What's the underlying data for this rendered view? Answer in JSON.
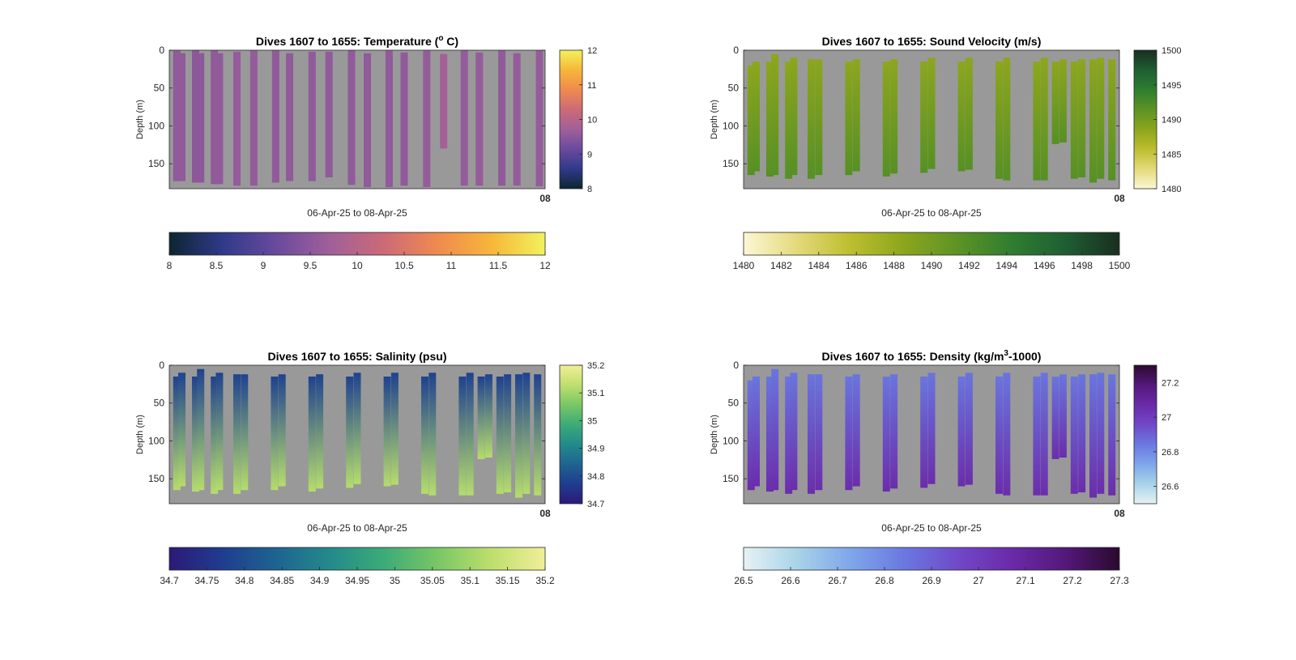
{
  "figure": {
    "background": "#ffffff",
    "plot_background": "#999999"
  },
  "chart_data": [
    {
      "type": "heatmap",
      "id": "temperature",
      "title": "Dives 1607 to 1655: Temperature (°C)",
      "title_main": "Dives 1607 to 1655: Temperature (",
      "title_sup": "o",
      "title_end": " C)",
      "ylabel": "Depth (m)",
      "xlabel": "06-Apr-25 to 08-Apr-25",
      "x_tick_label": "08",
      "ylim": [
        0,
        183
      ],
      "y_reversed": true,
      "y_ticks": [
        0,
        50,
        100,
        150
      ],
      "clim": [
        8,
        12
      ],
      "side_ticks": [
        8,
        9,
        10,
        11,
        12
      ],
      "bottom_ticks": [
        "8",
        "8.5",
        "9",
        "9.5",
        "10",
        "10.5",
        "11",
        "11.5",
        "12"
      ],
      "colormap": [
        "#0d2530",
        "#2f3a8a",
        "#6a4a9d",
        "#a0609a",
        "#cc6a77",
        "#ef8a4f",
        "#f7b63a",
        "#f2f25d"
      ],
      "value_rule": "base_plus_depth",
      "base_value": 9.55,
      "value_spread": 0.08,
      "casts": [
        {
          "x": 0.02,
          "start": 0,
          "end": 173,
          "value": 9.55
        },
        {
          "x": 0.0335,
          "start": 4,
          "end": 173,
          "value": 9.55
        },
        {
          "x": 0.07,
          "start": 0,
          "end": 175,
          "value": 9.5
        },
        {
          "x": 0.0835,
          "start": 4,
          "end": 175,
          "value": 9.5
        },
        {
          "x": 0.12,
          "start": 0,
          "end": 177,
          "value": 9.55
        },
        {
          "x": 0.1335,
          "start": 4,
          "end": 177,
          "value": 9.55
        },
        {
          "x": 0.18,
          "start": 2,
          "end": 179,
          "value": 9.6
        },
        {
          "x": 0.225,
          "start": 0,
          "end": 179,
          "value": 9.6
        },
        {
          "x": 0.283,
          "start": 0,
          "end": 175,
          "value": 9.55
        },
        {
          "x": 0.32,
          "start": 4,
          "end": 173,
          "value": 9.55
        },
        {
          "x": 0.38,
          "start": 2,
          "end": 173,
          "value": 9.55
        },
        {
          "x": 0.425,
          "start": 2,
          "end": 168,
          "value": 9.55
        },
        {
          "x": 0.485,
          "start": 0,
          "end": 178,
          "value": 9.55
        },
        {
          "x": 0.527,
          "start": 4,
          "end": 181,
          "value": 9.55
        },
        {
          "x": 0.585,
          "start": 0,
          "end": 181,
          "value": 9.55
        },
        {
          "x": 0.625,
          "start": 3,
          "end": 179,
          "value": 9.55
        },
        {
          "x": 0.685,
          "start": 0,
          "end": 181,
          "value": 9.6
        },
        {
          "x": 0.73,
          "start": 5,
          "end": 130,
          "value": 9.75
        },
        {
          "x": 0.785,
          "start": 0,
          "end": 179,
          "value": 9.6
        },
        {
          "x": 0.825,
          "start": 3,
          "end": 179,
          "value": 9.6
        },
        {
          "x": 0.885,
          "start": 0,
          "end": 179,
          "value": 9.55
        },
        {
          "x": 0.925,
          "start": 4,
          "end": 179,
          "value": 9.6
        },
        {
          "x": 0.985,
          "start": 0,
          "end": 180,
          "value": 9.6
        }
      ]
    },
    {
      "type": "heatmap",
      "id": "sound_velocity",
      "title": "Dives 1607 to 1655: Sound Velocity (m/s)",
      "title_main": "Dives 1607 to 1655: Sound Velocity (m/s)",
      "title_sup": "",
      "title_end": "",
      "ylabel": "Depth (m)",
      "xlabel": "06-Apr-25 to 08-Apr-25",
      "x_tick_label": "08",
      "ylim": [
        0,
        183
      ],
      "y_reversed": true,
      "y_ticks": [
        0,
        50,
        100,
        150
      ],
      "clim": [
        1480,
        1500
      ],
      "side_ticks": [
        1480,
        1485,
        1490,
        1495,
        1500
      ],
      "bottom_ticks": [
        "1480",
        "1482",
        "1484",
        "1486",
        "1488",
        "1490",
        "1492",
        "1494",
        "1496",
        "1498",
        "1500"
      ],
      "colormap": [
        "#fcf7d5",
        "#e4d97a",
        "#bcbe2e",
        "#8ca51d",
        "#5c9324",
        "#2f7d2f",
        "#1e5e33",
        "#1a2e1f"
      ],
      "value_rule": "gradient",
      "top_value": 1488.5,
      "bottom_value": 1491.8,
      "casts": [
        {
          "x": 0.02,
          "start": 20,
          "end": 165
        },
        {
          "x": 0.0335,
          "start": 15,
          "end": 160
        },
        {
          "x": 0.07,
          "start": 15,
          "end": 167
        },
        {
          "x": 0.0835,
          "start": 5,
          "end": 165
        },
        {
          "x": 0.12,
          "start": 15,
          "end": 170
        },
        {
          "x": 0.1335,
          "start": 10,
          "end": 165
        },
        {
          "x": 0.18,
          "start": 12,
          "end": 170
        },
        {
          "x": 0.2,
          "start": 12,
          "end": 165
        },
        {
          "x": 0.28,
          "start": 15,
          "end": 165
        },
        {
          "x": 0.3,
          "start": 12,
          "end": 160
        },
        {
          "x": 0.38,
          "start": 15,
          "end": 167
        },
        {
          "x": 0.4,
          "start": 12,
          "end": 163
        },
        {
          "x": 0.48,
          "start": 15,
          "end": 162
        },
        {
          "x": 0.5,
          "start": 10,
          "end": 157
        },
        {
          "x": 0.58,
          "start": 15,
          "end": 160
        },
        {
          "x": 0.6,
          "start": 10,
          "end": 158
        },
        {
          "x": 0.68,
          "start": 15,
          "end": 170
        },
        {
          "x": 0.7,
          "start": 10,
          "end": 172
        },
        {
          "x": 0.78,
          "start": 15,
          "end": 172
        },
        {
          "x": 0.8,
          "start": 10,
          "end": 172
        },
        {
          "x": 0.83,
          "start": 15,
          "end": 124
        },
        {
          "x": 0.85,
          "start": 12,
          "end": 122
        },
        {
          "x": 0.88,
          "start": 15,
          "end": 170
        },
        {
          "x": 0.9,
          "start": 12,
          "end": 168
        },
        {
          "x": 0.93,
          "start": 12,
          "end": 175
        },
        {
          "x": 0.95,
          "start": 10,
          "end": 170
        },
        {
          "x": 0.98,
          "start": 12,
          "end": 172
        }
      ]
    },
    {
      "type": "heatmap",
      "id": "salinity",
      "title": "Dives 1607 to 1655: Salinity (psu)",
      "title_main": "Dives 1607 to 1655: Salinity (psu)",
      "title_sup": "",
      "title_end": "",
      "ylabel": "Depth (m)",
      "xlabel": "06-Apr-25 to 08-Apr-25",
      "x_tick_label": "08",
      "ylim": [
        0,
        183
      ],
      "y_reversed": true,
      "y_ticks": [
        0,
        50,
        100,
        150
      ],
      "clim": [
        34.7,
        35.2
      ],
      "side_ticks": [
        34.7,
        34.8,
        34.9,
        35,
        35.1,
        35.2
      ],
      "bottom_ticks": [
        "34.7",
        "34.75",
        "34.8",
        "34.85",
        "34.9",
        "34.95",
        "35",
        "35.05",
        "35.1",
        "35.15",
        "35.2"
      ],
      "colormap": [
        "#2b1a78",
        "#1f3d8f",
        "#1e6491",
        "#238a8a",
        "#3cab78",
        "#79c765",
        "#bddf6e",
        "#f2ee98"
      ],
      "value_rule": "gradient",
      "top_value": 34.78,
      "bottom_value": 35.12,
      "casts": [
        {
          "x": 0.02,
          "start": 15,
          "end": 165
        },
        {
          "x": 0.0335,
          "start": 10,
          "end": 160
        },
        {
          "x": 0.07,
          "start": 15,
          "end": 167
        },
        {
          "x": 0.0835,
          "start": 5,
          "end": 165
        },
        {
          "x": 0.12,
          "start": 15,
          "end": 170
        },
        {
          "x": 0.1335,
          "start": 10,
          "end": 165
        },
        {
          "x": 0.18,
          "start": 12,
          "end": 170
        },
        {
          "x": 0.2,
          "start": 12,
          "end": 165
        },
        {
          "x": 0.28,
          "start": 15,
          "end": 165
        },
        {
          "x": 0.3,
          "start": 12,
          "end": 160
        },
        {
          "x": 0.38,
          "start": 15,
          "end": 167
        },
        {
          "x": 0.4,
          "start": 12,
          "end": 163
        },
        {
          "x": 0.48,
          "start": 15,
          "end": 162
        },
        {
          "x": 0.5,
          "start": 10,
          "end": 157
        },
        {
          "x": 0.58,
          "start": 15,
          "end": 160
        },
        {
          "x": 0.6,
          "start": 10,
          "end": 158
        },
        {
          "x": 0.68,
          "start": 15,
          "end": 170
        },
        {
          "x": 0.7,
          "start": 10,
          "end": 172
        },
        {
          "x": 0.78,
          "start": 15,
          "end": 172
        },
        {
          "x": 0.8,
          "start": 10,
          "end": 172
        },
        {
          "x": 0.83,
          "start": 15,
          "end": 124
        },
        {
          "x": 0.85,
          "start": 12,
          "end": 122
        },
        {
          "x": 0.88,
          "start": 15,
          "end": 170
        },
        {
          "x": 0.9,
          "start": 12,
          "end": 168
        },
        {
          "x": 0.93,
          "start": 12,
          "end": 175
        },
        {
          "x": 0.95,
          "start": 10,
          "end": 170
        },
        {
          "x": 0.98,
          "start": 12,
          "end": 172
        }
      ]
    },
    {
      "type": "heatmap",
      "id": "density",
      "title": "Dives 1607 to 1655: Density (kg/m³-1000)",
      "title_main": "Dives 1607 to 1655: Density (kg/m",
      "title_sup": "3",
      "title_end": "-1000)",
      "ylabel": "Depth (m)",
      "xlabel": "06-Apr-25 to 08-Apr-25",
      "x_tick_label": "08",
      "ylim": [
        0,
        183
      ],
      "y_reversed": true,
      "y_ticks": [
        0,
        50,
        100,
        150
      ],
      "clim": [
        26.5,
        27.3
      ],
      "side_ticks": [
        26.6,
        26.8,
        27,
        27.2
      ],
      "bottom_ticks": [
        "26.5",
        "26.6",
        "26.7",
        "26.8",
        "26.9",
        "27",
        "27.1",
        "27.2",
        "27.3"
      ],
      "colormap": [
        "#e6f2f3",
        "#a8d3e8",
        "#7fa6ea",
        "#6a78e0",
        "#7048c8",
        "#6a2aa8",
        "#54187a",
        "#2a0a2e"
      ],
      "value_rule": "gradient",
      "top_value": 26.85,
      "bottom_value": 27.06,
      "casts": [
        {
          "x": 0.02,
          "start": 20,
          "end": 165
        },
        {
          "x": 0.0335,
          "start": 15,
          "end": 160
        },
        {
          "x": 0.07,
          "start": 15,
          "end": 167
        },
        {
          "x": 0.0835,
          "start": 5,
          "end": 165
        },
        {
          "x": 0.12,
          "start": 15,
          "end": 170
        },
        {
          "x": 0.1335,
          "start": 10,
          "end": 165
        },
        {
          "x": 0.18,
          "start": 12,
          "end": 170
        },
        {
          "x": 0.2,
          "start": 12,
          "end": 165
        },
        {
          "x": 0.28,
          "start": 15,
          "end": 165
        },
        {
          "x": 0.3,
          "start": 12,
          "end": 160
        },
        {
          "x": 0.38,
          "start": 15,
          "end": 167
        },
        {
          "x": 0.4,
          "start": 12,
          "end": 163
        },
        {
          "x": 0.48,
          "start": 15,
          "end": 162
        },
        {
          "x": 0.5,
          "start": 10,
          "end": 157
        },
        {
          "x": 0.58,
          "start": 15,
          "end": 160
        },
        {
          "x": 0.6,
          "start": 10,
          "end": 158
        },
        {
          "x": 0.68,
          "start": 15,
          "end": 170
        },
        {
          "x": 0.7,
          "start": 10,
          "end": 172
        },
        {
          "x": 0.78,
          "start": 15,
          "end": 172
        },
        {
          "x": 0.8,
          "start": 10,
          "end": 172
        },
        {
          "x": 0.83,
          "start": 15,
          "end": 124
        },
        {
          "x": 0.85,
          "start": 12,
          "end": 122
        },
        {
          "x": 0.88,
          "start": 15,
          "end": 170
        },
        {
          "x": 0.9,
          "start": 12,
          "end": 168
        },
        {
          "x": 0.93,
          "start": 12,
          "end": 175
        },
        {
          "x": 0.95,
          "start": 10,
          "end": 170
        },
        {
          "x": 0.98,
          "start": 12,
          "end": 172
        }
      ]
    }
  ]
}
